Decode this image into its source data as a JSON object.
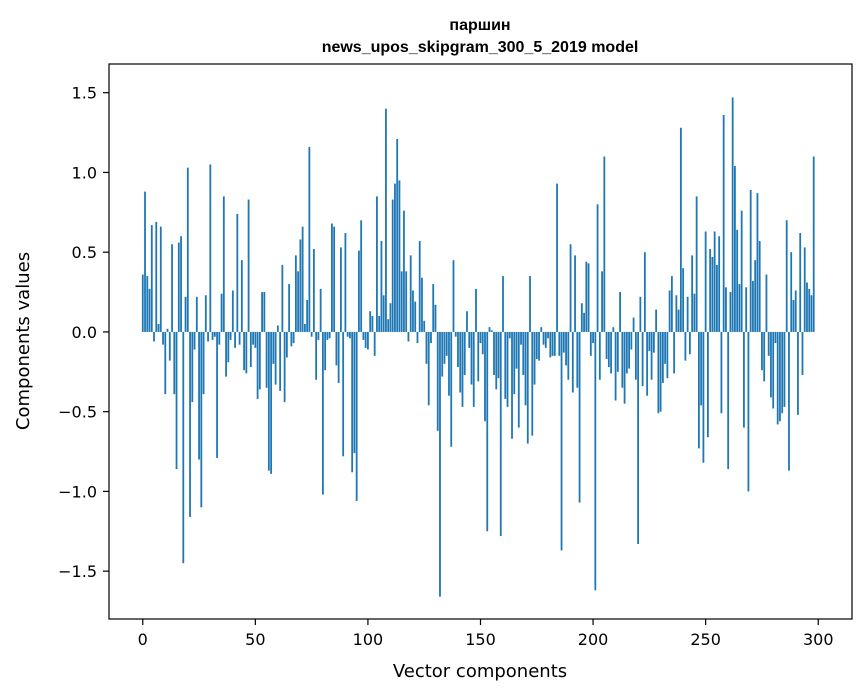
{
  "chart_data": {
    "type": "bar",
    "title": "паршин",
    "subtitle": "news_upos_skipgram_300_5_2019 model",
    "xlabel": "Vector components",
    "ylabel": "Components values",
    "xlim": [
      -15,
      315
    ],
    "ylim": [
      -1.8,
      1.68
    ],
    "xticks": [
      0,
      50,
      100,
      150,
      200,
      250,
      300
    ],
    "xtick_labels": [
      "0",
      "50",
      "100",
      "150",
      "200",
      "250",
      "300"
    ],
    "yticks": [
      -1.5,
      -1.0,
      -0.5,
      0.0,
      0.5,
      1.0,
      1.5
    ],
    "ytick_labels": [
      "−1.5",
      "−1.0",
      "−0.5",
      "0.0",
      "0.5",
      "1.0",
      "1.5"
    ],
    "grid": false,
    "bar_color": "#1f77b4",
    "values": [
      0.36,
      0.88,
      0.35,
      0.27,
      0.67,
      -0.06,
      0.69,
      0.05,
      0.66,
      -0.08,
      -0.39,
      0.02,
      -0.18,
      0.55,
      -0.39,
      -0.86,
      0.56,
      0.6,
      -1.45,
      0.22,
      1.03,
      -1.16,
      -0.44,
      -0.11,
      0.22,
      -0.8,
      -1.1,
      -0.39,
      0.23,
      -0.06,
      1.05,
      -0.05,
      -0.03,
      -0.79,
      -0.08,
      0.24,
      0.85,
      -0.28,
      -0.19,
      -0.05,
      0.26,
      -0.1,
      0.74,
      -0.08,
      0.45,
      -0.24,
      -0.26,
      0.83,
      -0.22,
      -0.08,
      -0.1,
      -0.42,
      -0.36,
      0.25,
      0.25,
      -0.35,
      -0.87,
      -0.89,
      -0.2,
      -0.33,
      0.04,
      -0.37,
      0.42,
      -0.44,
      -0.16,
      0.3,
      -0.09,
      -0.07,
      0.48,
      0.38,
      0.58,
      0.66,
      0.05,
      0.2,
      1.16,
      -0.03,
      0.52,
      -0.3,
      -0.05,
      0.27,
      -1.02,
      -0.24,
      -0.05,
      -0.04,
      0.68,
      0.66,
      -0.21,
      -0.32,
      0.53,
      -0.78,
      0.62,
      -0.03,
      -0.04,
      -0.88,
      -0.76,
      -1.06,
      0.51,
      0.7,
      -0.05,
      -0.1,
      -0.11,
      0.13,
      0.1,
      -0.15,
      0.85,
      0.1,
      0.57,
      0.23,
      1.4,
      0.08,
      0.18,
      0.83,
      0.93,
      1.21,
      0.95,
      0.38,
      0.76,
      0.38,
      -0.06,
      0.48,
      0.26,
      0.19,
      -0.07,
      0.57,
      0.34,
      0.07,
      -0.2,
      -0.46,
      -0.07,
      0.3,
      0.17,
      -0.62,
      -1.66,
      -0.28,
      -0.2,
      -0.15,
      -0.4,
      -0.72,
      0.45,
      -0.03,
      -0.22,
      -0.38,
      -0.47,
      -0.27,
      0.13,
      -0.1,
      -0.33,
      -0.47,
      0.27,
      -0.31,
      -0.07,
      -0.14,
      -0.56,
      -1.25,
      0.03,
      0.01,
      -0.27,
      -0.36,
      -0.29,
      -1.28,
      0.35,
      -0.42,
      -0.47,
      -0.04,
      -0.67,
      -0.39,
      -0.23,
      -0.6,
      -0.08,
      -0.27,
      -0.46,
      -0.7,
      0.35,
      -0.65,
      -0.33,
      -0.17,
      -0.18,
      0.03,
      -0.08,
      -0.1,
      -0.04,
      -0.16,
      -0.15,
      -0.15,
      0.93,
      -0.15,
      -1.37,
      -0.13,
      -0.21,
      -0.3,
      0.55,
      -0.38,
      0.48,
      -0.35,
      -1.07,
      0.18,
      0.12,
      0.44,
      0.43,
      -0.15,
      -0.07,
      -1.62,
      0.8,
      -0.3,
      0.38,
      1.1,
      -0.17,
      -0.22,
      -0.26,
      0.03,
      -0.43,
      -0.25,
      0.25,
      -0.35,
      -0.45,
      -0.26,
      -0.23,
      -0.11,
      0.09,
      -0.3,
      -1.33,
      0.22,
      -0.34,
      0.5,
      -0.4,
      -0.12,
      -0.3,
      -0.13,
      0.14,
      -0.51,
      -0.5,
      -0.32,
      -0.2,
      -0.29,
      0.26,
      0.35,
      -0.26,
      0.23,
      0.14,
      1.28,
      0.4,
      -0.18,
      0.22,
      -0.14,
      0.48,
      0.24,
      0.85,
      -0.73,
      -0.46,
      -0.82,
      0.63,
      -0.66,
      0.52,
      0.47,
      0.63,
      0.42,
      0.6,
      -0.51,
      1.36,
      0.28,
      -0.86,
      0.25,
      1.47,
      1.04,
      0.64,
      0.3,
      0.76,
      -0.6,
      0.28,
      -1.0,
      0.89,
      0.32,
      0.45,
      0.87,
      0.57,
      -0.24,
      -0.31,
      0.36,
      -0.15,
      -0.41,
      -0.48,
      -0.07,
      -0.58,
      -0.56,
      -0.51,
      -0.47,
      0.7,
      -0.87,
      0.5,
      0.2,
      0.26,
      -0.52,
      0.62,
      -0.27,
      0.53,
      0.31,
      0.27,
      0.23,
      1.1
    ]
  }
}
